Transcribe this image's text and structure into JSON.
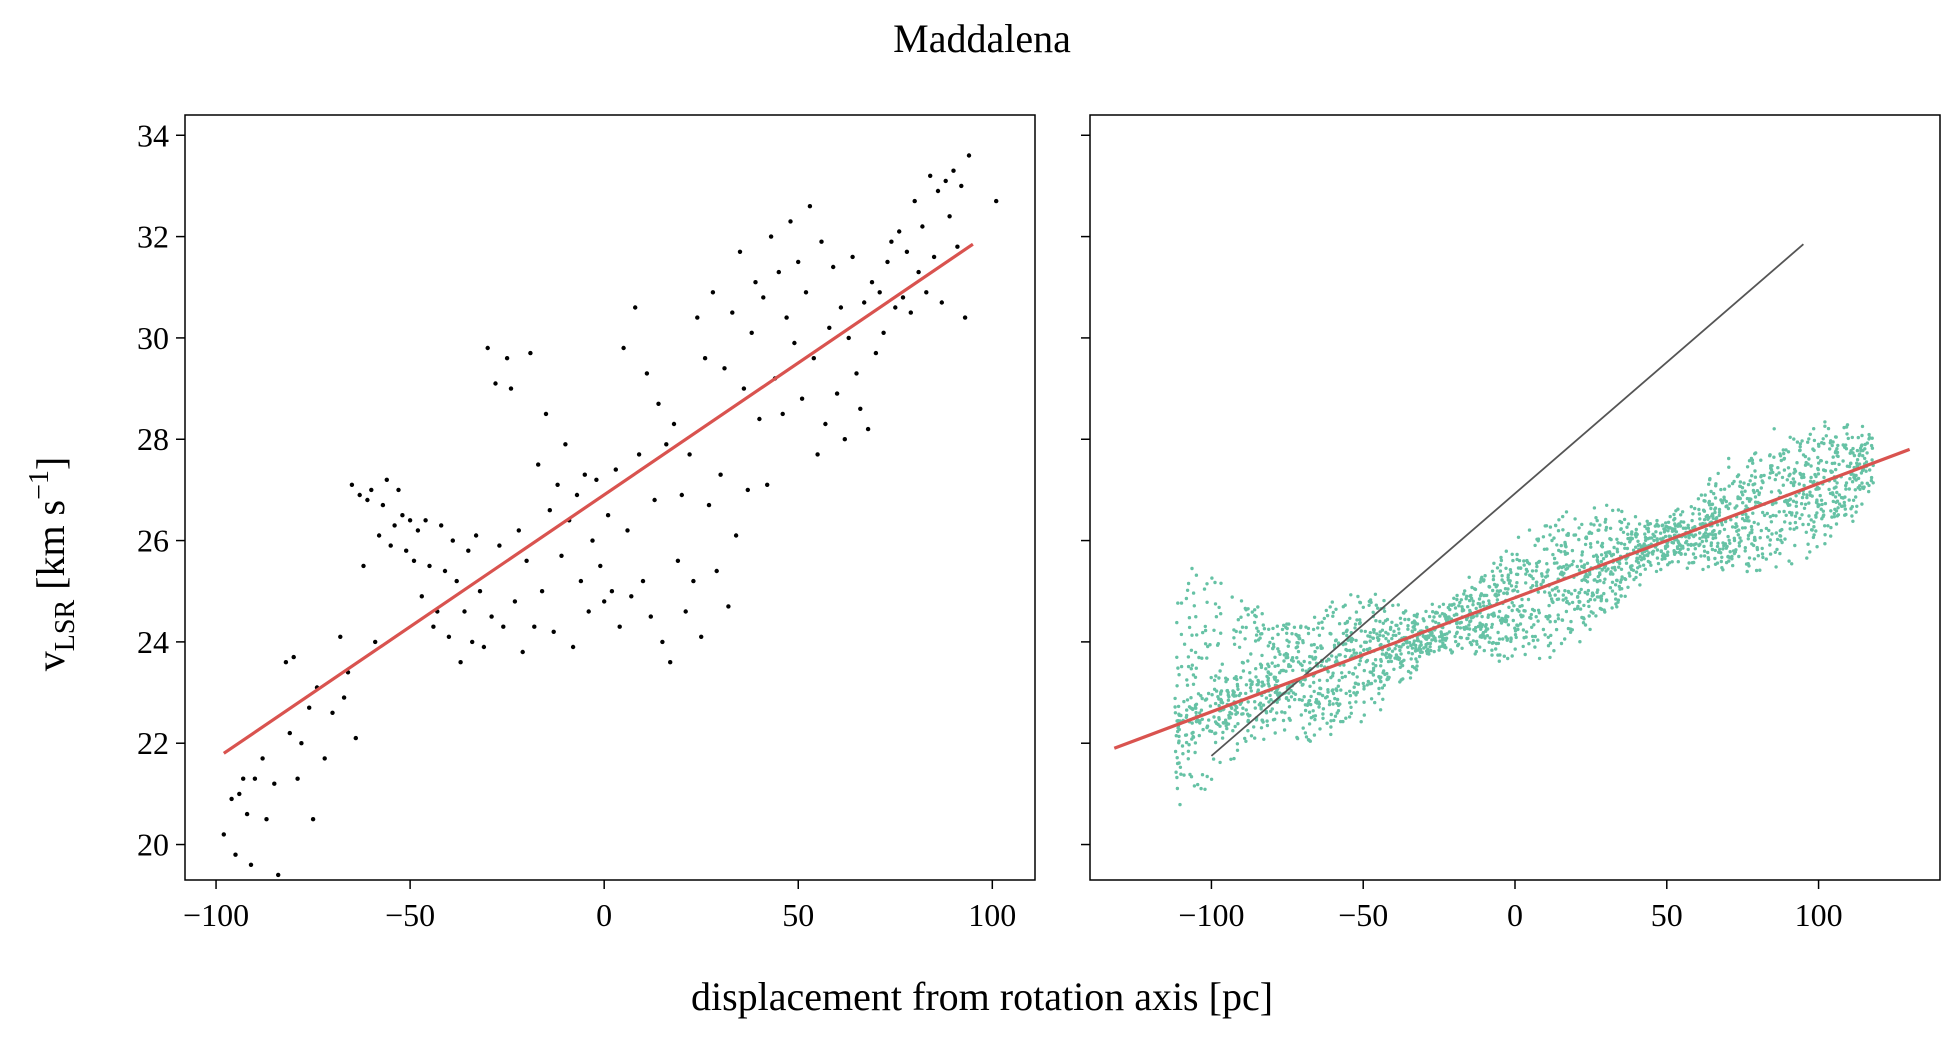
{
  "figure": {
    "title": "Maddalena",
    "xlabel": "displacement from rotation axis [pc]",
    "ylabel_main": "v",
    "ylabel_sub": "LSR",
    "ylabel_unit_open": " [km s",
    "ylabel_sup": "−1",
    "ylabel_unit_close": "]"
  },
  "chart_data": [
    {
      "type": "scatter",
      "panel": "left",
      "xlim": [
        -108,
        111
      ],
      "ylim": [
        19.3,
        34.4
      ],
      "xticks": [
        -100,
        -50,
        0,
        50,
        100
      ],
      "xtick_labels": [
        "−100",
        "−50",
        "0",
        "50",
        "100"
      ],
      "yticks": [
        20,
        22,
        24,
        26,
        28,
        30,
        32,
        34
      ],
      "ytick_labels": [
        "20",
        "22",
        "24",
        "26",
        "28",
        "30",
        "32",
        "34"
      ],
      "grid": false,
      "colors": {
        "points": "#000000",
        "fit": "#d9534f"
      },
      "fit_line": {
        "x": [
          -98,
          95
        ],
        "y": [
          21.8,
          31.85
        ]
      },
      "points": [
        [
          -98,
          20.2
        ],
        [
          -96,
          20.9
        ],
        [
          -95,
          19.8
        ],
        [
          -94,
          21.0
        ],
        [
          -93,
          21.3
        ],
        [
          -92,
          20.6
        ],
        [
          -91,
          19.6
        ],
        [
          -90,
          21.3
        ],
        [
          -88,
          21.7
        ],
        [
          -87,
          20.5
        ],
        [
          -85,
          21.2
        ],
        [
          -84,
          19.4
        ],
        [
          -82,
          23.6
        ],
        [
          -81,
          22.2
        ],
        [
          -80,
          23.7
        ],
        [
          -79,
          21.3
        ],
        [
          -78,
          22.0
        ],
        [
          -76,
          22.7
        ],
        [
          -75,
          20.5
        ],
        [
          -74,
          23.1
        ],
        [
          -72,
          21.7
        ],
        [
          -70,
          22.6
        ],
        [
          -68,
          24.1
        ],
        [
          -67,
          22.9
        ],
        [
          -66,
          23.4
        ],
        [
          -65,
          27.1
        ],
        [
          -64,
          22.1
        ],
        [
          -63,
          26.9
        ],
        [
          -62,
          25.5
        ],
        [
          -61,
          26.8
        ],
        [
          -60,
          27.0
        ],
        [
          -59,
          24.0
        ],
        [
          -58,
          26.1
        ],
        [
          -57,
          26.7
        ],
        [
          -56,
          27.2
        ],
        [
          -55,
          25.9
        ],
        [
          -54,
          26.3
        ],
        [
          -53,
          27.0
        ],
        [
          -52,
          26.5
        ],
        [
          -51,
          25.8
        ],
        [
          -50,
          26.4
        ],
        [
          -49,
          25.6
        ],
        [
          -48,
          26.2
        ],
        [
          -47,
          24.9
        ],
        [
          -46,
          26.4
        ],
        [
          -45,
          25.5
        ],
        [
          -44,
          24.3
        ],
        [
          -43,
          24.6
        ],
        [
          -42,
          26.3
        ],
        [
          -41,
          25.4
        ],
        [
          -40,
          24.1
        ],
        [
          -39,
          26.0
        ],
        [
          -38,
          25.2
        ],
        [
          -37,
          23.6
        ],
        [
          -36,
          24.6
        ],
        [
          -35,
          25.8
        ],
        [
          -34,
          24.0
        ],
        [
          -33,
          26.1
        ],
        [
          -32,
          25.0
        ],
        [
          -31,
          23.9
        ],
        [
          -30,
          29.8
        ],
        [
          -29,
          24.5
        ],
        [
          -28,
          29.1
        ],
        [
          -27,
          25.9
        ],
        [
          -26,
          24.3
        ],
        [
          -25,
          29.6
        ],
        [
          -24,
          29.0
        ],
        [
          -23,
          24.8
        ],
        [
          -22,
          26.2
        ],
        [
          -21,
          23.8
        ],
        [
          -20,
          25.6
        ],
        [
          -19,
          29.7
        ],
        [
          -18,
          24.3
        ],
        [
          -17,
          27.5
        ],
        [
          -16,
          25.0
        ],
        [
          -15,
          28.5
        ],
        [
          -14,
          26.6
        ],
        [
          -13,
          24.2
        ],
        [
          -12,
          27.1
        ],
        [
          -11,
          25.7
        ],
        [
          -10,
          27.9
        ],
        [
          -9,
          26.4
        ],
        [
          -8,
          23.9
        ],
        [
          -7,
          26.9
        ],
        [
          -6,
          25.2
        ],
        [
          -5,
          27.3
        ],
        [
          -4,
          24.6
        ],
        [
          -3,
          26.0
        ],
        [
          -2,
          27.2
        ],
        [
          -1,
          25.5
        ],
        [
          0,
          24.8
        ],
        [
          1,
          26.5
        ],
        [
          2,
          25.0
        ],
        [
          3,
          27.4
        ],
        [
          4,
          24.3
        ],
        [
          5,
          29.8
        ],
        [
          6,
          26.2
        ],
        [
          7,
          24.9
        ],
        [
          8,
          30.6
        ],
        [
          9,
          27.7
        ],
        [
          10,
          25.2
        ],
        [
          11,
          29.3
        ],
        [
          12,
          24.5
        ],
        [
          13,
          26.8
        ],
        [
          14,
          28.7
        ],
        [
          15,
          24.0
        ],
        [
          16,
          27.9
        ],
        [
          17,
          23.6
        ],
        [
          18,
          28.3
        ],
        [
          19,
          25.6
        ],
        [
          20,
          26.9
        ],
        [
          21,
          24.6
        ],
        [
          22,
          27.7
        ],
        [
          23,
          25.2
        ],
        [
          24,
          30.4
        ],
        [
          25,
          24.1
        ],
        [
          26,
          29.6
        ],
        [
          27,
          26.7
        ],
        [
          28,
          30.9
        ],
        [
          29,
          25.4
        ],
        [
          30,
          27.3
        ],
        [
          31,
          29.4
        ],
        [
          32,
          24.7
        ],
        [
          33,
          30.5
        ],
        [
          34,
          26.1
        ],
        [
          35,
          31.7
        ],
        [
          36,
          29.0
        ],
        [
          37,
          27.0
        ],
        [
          38,
          30.1
        ],
        [
          39,
          31.1
        ],
        [
          40,
          28.4
        ],
        [
          41,
          30.8
        ],
        [
          42,
          27.1
        ],
        [
          43,
          32.0
        ],
        [
          44,
          29.2
        ],
        [
          45,
          31.3
        ],
        [
          46,
          28.5
        ],
        [
          47,
          30.4
        ],
        [
          48,
          32.3
        ],
        [
          49,
          29.9
        ],
        [
          50,
          31.5
        ],
        [
          51,
          28.8
        ],
        [
          52,
          30.9
        ],
        [
          53,
          32.6
        ],
        [
          54,
          29.6
        ],
        [
          55,
          27.7
        ],
        [
          56,
          31.9
        ],
        [
          57,
          28.3
        ],
        [
          58,
          30.2
        ],
        [
          59,
          31.4
        ],
        [
          60,
          28.9
        ],
        [
          61,
          30.6
        ],
        [
          62,
          28.0
        ],
        [
          63,
          30.0
        ],
        [
          64,
          31.6
        ],
        [
          65,
          29.3
        ],
        [
          66,
          28.6
        ],
        [
          67,
          30.7
        ],
        [
          68,
          28.2
        ],
        [
          69,
          31.1
        ],
        [
          70,
          29.7
        ],
        [
          71,
          30.9
        ],
        [
          72,
          30.1
        ],
        [
          73,
          31.5
        ],
        [
          74,
          31.9
        ],
        [
          75,
          30.6
        ],
        [
          76,
          32.1
        ],
        [
          77,
          30.8
        ],
        [
          78,
          31.7
        ],
        [
          79,
          30.5
        ],
        [
          80,
          32.7
        ],
        [
          81,
          31.3
        ],
        [
          82,
          32.2
        ],
        [
          83,
          30.9
        ],
        [
          84,
          33.2
        ],
        [
          85,
          31.6
        ],
        [
          86,
          32.9
        ],
        [
          87,
          30.7
        ],
        [
          88,
          33.1
        ],
        [
          89,
          32.4
        ],
        [
          90,
          33.3
        ],
        [
          91,
          31.8
        ],
        [
          92,
          33.0
        ],
        [
          93,
          30.4
        ],
        [
          94,
          33.6
        ],
        [
          101,
          32.7
        ]
      ]
    },
    {
      "type": "scatter",
      "panel": "right",
      "xlim": [
        -140,
        140
      ],
      "ylim": [
        19.3,
        34.4
      ],
      "xticks": [
        -100,
        -50,
        0,
        50,
        100
      ],
      "xtick_labels": [
        "−100",
        "−50",
        "0",
        "50",
        "100"
      ],
      "yticks": [
        20,
        22,
        24,
        26,
        28,
        30,
        32,
        34
      ],
      "ytick_labels": [
        "",
        "",
        "",
        "",
        "",
        "",
        "",
        ""
      ],
      "grid": false,
      "colors": {
        "points": "#66c2a5",
        "fit": "#d9534f",
        "reference": "#555555"
      },
      "fit_line": {
        "x": [
          -132,
          130
        ],
        "y": [
          21.9,
          27.8
        ]
      },
      "reference_line": {
        "x": [
          -100,
          95
        ],
        "y": [
          21.75,
          31.85
        ]
      },
      "model": {
        "x_range": [
          -112,
          118
        ],
        "trend_slope": 0.0225,
        "trend_intercept": 24.85,
        "amplitude": 1.05,
        "period": 150,
        "phase_offset": -25,
        "left_fan_x": [
          -112,
          -70
        ],
        "left_fan_y_range": [
          20.5,
          25.7
        ]
      }
    }
  ]
}
